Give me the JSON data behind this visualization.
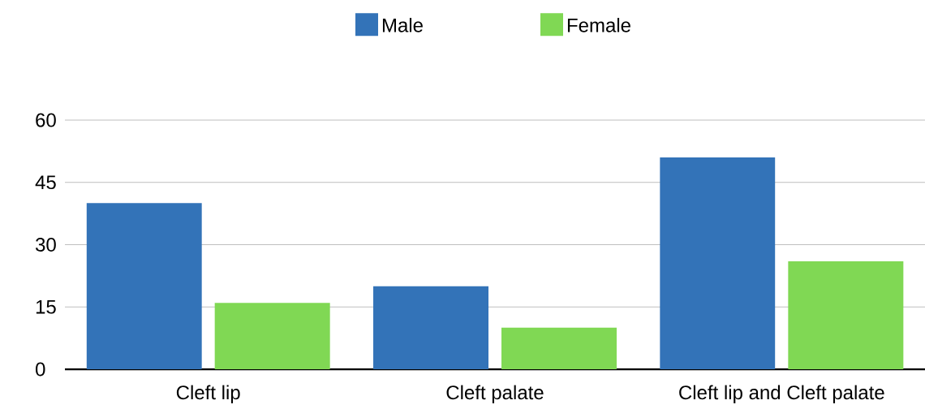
{
  "chart_data": {
    "type": "bar",
    "categories": [
      "Cleft lip",
      "Cleft palate",
      "Cleft lip and Cleft palate"
    ],
    "series": [
      {
        "name": "Male",
        "color": "#3373b8",
        "values": [
          40,
          20,
          51
        ]
      },
      {
        "name": "Female",
        "color": "#80d854",
        "values": [
          16,
          10,
          26
        ]
      }
    ],
    "ylim": [
      0,
      60
    ],
    "yticks": [
      0,
      15,
      30,
      45,
      60
    ],
    "grid": "y",
    "legend": "top"
  }
}
